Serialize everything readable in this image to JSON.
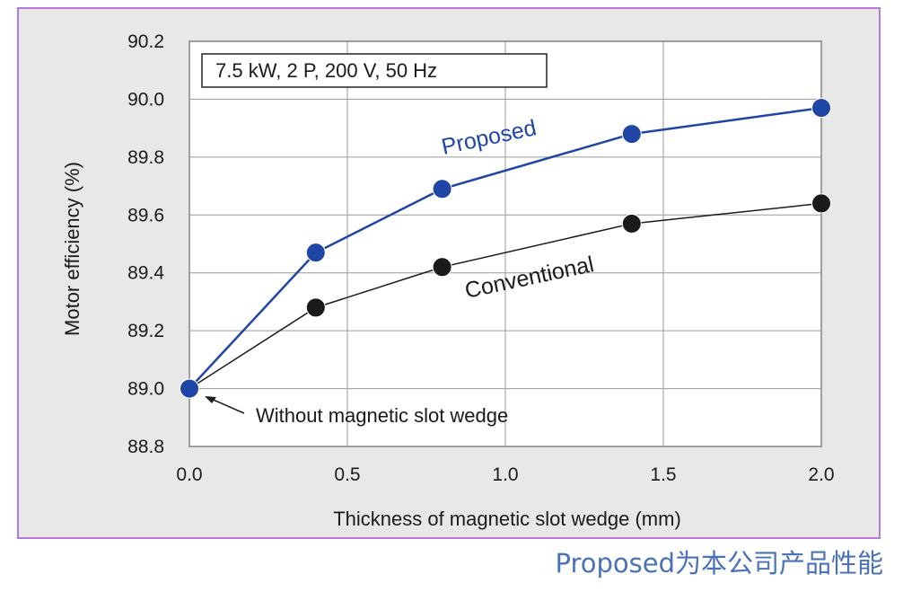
{
  "chart_data": {
    "type": "line",
    "title": "7.5 kW, 2 P, 200 V, 50 Hz",
    "xlabel": "Thickness of magnetic slot wedge (mm)",
    "ylabel": "Motor efficiency (%)",
    "xlim": [
      0.0,
      2.0
    ],
    "ylim": [
      88.8,
      90.2
    ],
    "xticks": [
      0.0,
      0.5,
      1.0,
      1.5,
      2.0
    ],
    "xtick_labels": [
      "0.0",
      "0.5",
      "1.0",
      "1.5",
      "2.0"
    ],
    "yticks": [
      88.8,
      89.0,
      89.2,
      89.4,
      89.6,
      89.8,
      90.0,
      90.2
    ],
    "ytick_labels": [
      "88.8",
      "89.0",
      "89.2",
      "89.4",
      "89.6",
      "89.8",
      "90.0",
      "90.2"
    ],
    "grid": true,
    "series": [
      {
        "name": "Proposed",
        "color": "#1f45a6",
        "points": [
          [
            0.0,
            89.0
          ],
          [
            0.4,
            89.47
          ],
          [
            0.8,
            89.69
          ],
          [
            1.4,
            89.88
          ],
          [
            2.0,
            89.97
          ]
        ]
      },
      {
        "name": "Conventional",
        "color": "#1a1a1a",
        "points": [
          [
            0.0,
            89.0
          ],
          [
            0.4,
            89.28
          ],
          [
            0.8,
            89.42
          ],
          [
            1.4,
            89.57
          ],
          [
            2.0,
            89.64
          ]
        ]
      }
    ],
    "annotations": [
      {
        "text": "Without magnetic slot wedge",
        "x": 0.0,
        "y": 89.0
      }
    ]
  },
  "footer": {
    "caption": "Proposed为本公司产品性能",
    "caption_color": "#4a72b8"
  }
}
